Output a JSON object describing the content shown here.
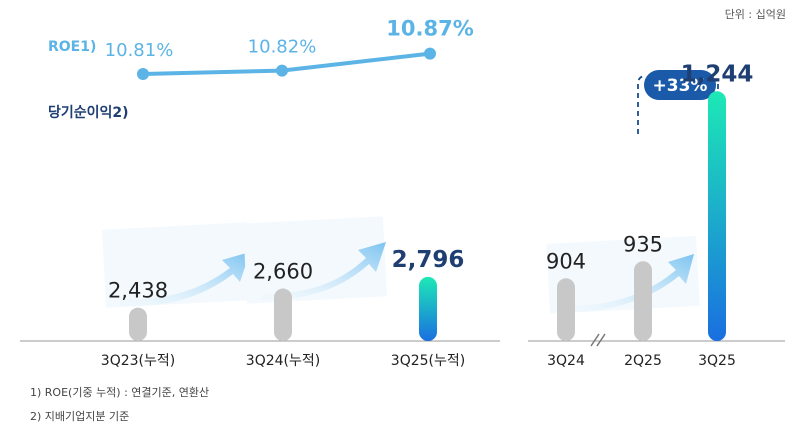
{
  "unit_label": "단위 : 십억원",
  "footnotes": [
    "1) ROE(기중 누적) :  연결기준, 연환산",
    "2) 지배기업지분 기준"
  ],
  "colors": {
    "gray_bar": "#c8c8c8",
    "accent_top": "#1de9b6",
    "accent_bottom": "#1a6fe0",
    "roe": "#5bb4e5",
    "navy": "#1f3f73",
    "arrow_light": "#a9d8f5"
  },
  "chart_data": [
    {
      "type": "bar",
      "categories": [
        "3Q23(누적)",
        "3Q24(누적)",
        "3Q25(누적)"
      ],
      "series": [
        {
          "name": "당기순이익2)",
          "values": [
            2438,
            2660,
            2796
          ]
        }
      ],
      "value_labels": [
        "2,438",
        "2,660",
        "2,796"
      ],
      "line_series": {
        "name": "ROE1)",
        "values": [
          10.81,
          10.82,
          10.87
        ],
        "labels": [
          "10.81%",
          "10.82%",
          "10.87%"
        ]
      },
      "highlight_index": 2
    },
    {
      "type": "bar",
      "categories": [
        "3Q24",
        "2Q25",
        "3Q25"
      ],
      "series": [
        {
          "values": [
            904,
            935,
            1244
          ]
        }
      ],
      "value_labels": [
        "904",
        "935",
        "1,244"
      ],
      "highlight_index": 2,
      "annotation": "+33%",
      "axis_break_between": [
        0,
        1
      ]
    }
  ]
}
